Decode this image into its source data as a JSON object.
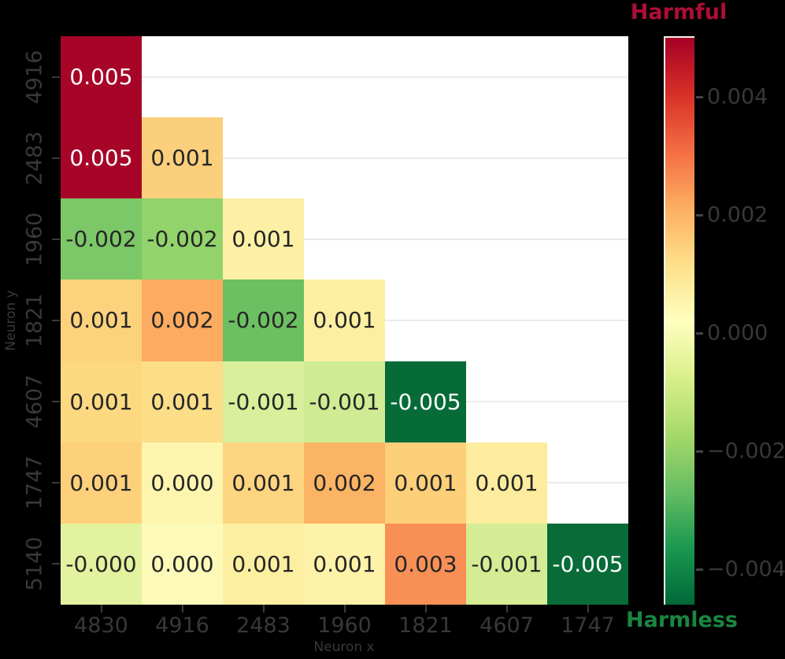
{
  "chart_data": {
    "type": "heatmap",
    "title": "",
    "xlabel": "Neuron x",
    "ylabel": "Neuron y",
    "x_categories": [
      "4830",
      "4916",
      "2483",
      "1960",
      "1821",
      "4607",
      "1747"
    ],
    "y_categories": [
      "4916",
      "2483",
      "1960",
      "1821",
      "4607",
      "1747",
      "5140"
    ],
    "mask": "upper-triangle-hidden",
    "values": [
      [
        0.005,
        null,
        null,
        null,
        null,
        null,
        null
      ],
      [
        0.005,
        0.001,
        null,
        null,
        null,
        null,
        null
      ],
      [
        -0.002,
        -0.002,
        0.001,
        null,
        null,
        null,
        null
      ],
      [
        0.001,
        0.002,
        -0.002,
        0.001,
        null,
        null,
        null
      ],
      [
        0.001,
        0.001,
        -0.001,
        -0.001,
        -0.005,
        null,
        null
      ],
      [
        0.001,
        0.0,
        0.001,
        0.002,
        0.001,
        0.001,
        null
      ],
      [
        -0.0,
        0.0,
        0.001,
        0.001,
        0.003,
        -0.001,
        -0.005
      ]
    ],
    "labels": [
      [
        "0.005"
      ],
      [
        "0.005",
        "0.001"
      ],
      [
        "-0.002",
        "-0.002",
        "0.001"
      ],
      [
        "0.001",
        "0.002",
        "-0.002",
        "0.001"
      ],
      [
        "0.001",
        "0.001",
        "-0.001",
        "-0.001",
        "-0.005"
      ],
      [
        "0.001",
        "0.000",
        "0.001",
        "0.002",
        "0.001",
        "0.001"
      ],
      [
        "-0.000",
        "0.000",
        "0.001",
        "0.001",
        "0.003",
        "-0.001",
        "-0.005"
      ]
    ],
    "cell_colors": [
      [
        "#a70528"
      ],
      [
        "#a70528",
        "#fccf7c"
      ],
      [
        "#7cc767",
        "#92d36c",
        "#fdf0a5"
      ],
      [
        "#fdd27d",
        "#fcab60",
        "#6cc061",
        "#fdefa1"
      ],
      [
        "#fcd981",
        "#fcdd88",
        "#d9ef9b",
        "#cfeb93",
        "#076b38"
      ],
      [
        "#fdd17b",
        "#fdf5ae",
        "#fdd480",
        "#fbb464",
        "#fdcf79",
        "#fdec9d"
      ],
      [
        "#e3f29e",
        "#fdfab9",
        "#fdefa0",
        "#fdf2a8",
        "#f89055",
        "#d5ec95",
        "#086b38"
      ]
    ],
    "cell_text_colors": [
      [
        "#ffffff"
      ],
      [
        "#ffffff",
        "#262626"
      ],
      [
        "#262626",
        "#262626",
        "#262626"
      ],
      [
        "#262626",
        "#262626",
        "#262626",
        "#262626"
      ],
      [
        "#262626",
        "#262626",
        "#262626",
        "#262626",
        "#ffffff"
      ],
      [
        "#262626",
        "#262626",
        "#262626",
        "#262626",
        "#262626",
        "#262626"
      ],
      [
        "#262626",
        "#262626",
        "#262626",
        "#262626",
        "#262626",
        "#262626",
        "#ffffff"
      ]
    ],
    "grid": "horizontal-light-gray",
    "colorbar": {
      "top_label": "Harmful",
      "bottom_label": "Harmless",
      "top_label_color": "#ae0e35",
      "bottom_label_color": "#1a8641",
      "vmax": 0.00503,
      "vmin": -0.0046,
      "tick_values": [
        0.004,
        0.002,
        0.0,
        -0.002,
        -0.004
      ],
      "tick_labels": [
        "0.004",
        "0.002",
        "0.000",
        "−0.002",
        "−0.004"
      ],
      "gradient_top_to_bottom": [
        "#a50026",
        "#d73027",
        "#f46d43",
        "#fdae61",
        "#fee08b",
        "#ffffbf",
        "#d9ef8b",
        "#a6d96a",
        "#66bd63",
        "#1a9850",
        "#006837"
      ]
    }
  }
}
